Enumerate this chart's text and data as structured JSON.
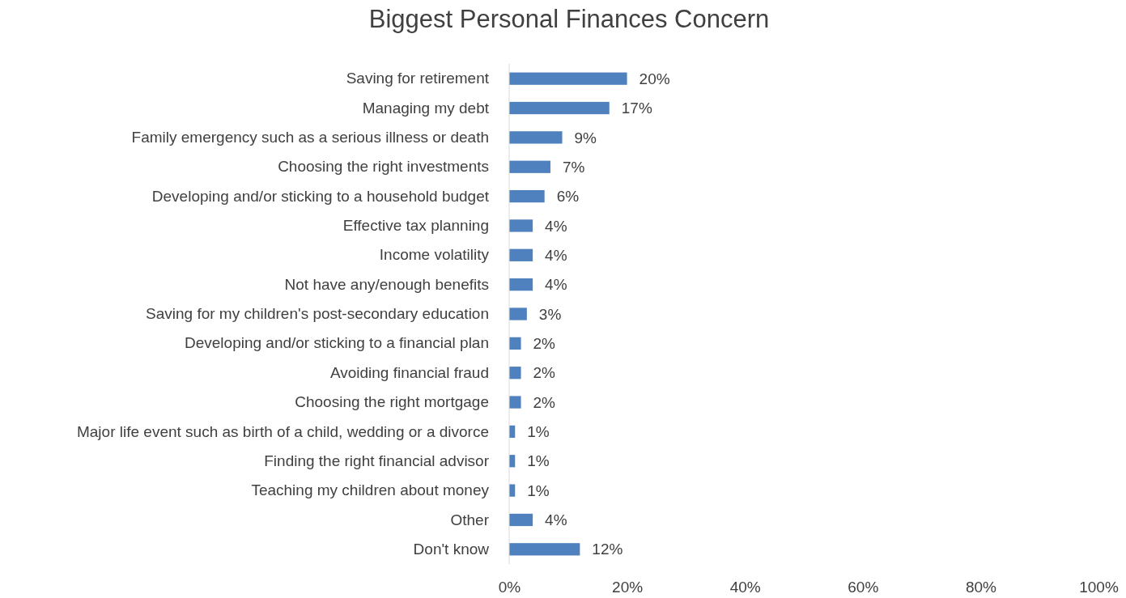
{
  "chart_data": {
    "type": "bar",
    "orientation": "horizontal",
    "title": "Biggest Personal Finances Concern",
    "categories": [
      "Saving for retirement",
      "Managing my debt",
      "Family emergency such as a serious illness or death",
      "Choosing the right investments",
      "Developing and/or sticking to a household budget",
      "Effective tax planning",
      "Income volatility",
      "Not have any/enough benefits",
      "Saving for my children's post-secondary education",
      "Developing and/or sticking to a financial plan",
      "Avoiding financial fraud",
      "Choosing the right mortgage",
      "Major life event such as birth of a child, wedding or a divorce",
      "Finding the right financial advisor",
      "Teaching my children about money",
      "Other",
      "Don't know"
    ],
    "values": [
      20,
      17,
      9,
      7,
      6,
      4,
      4,
      4,
      3,
      2,
      2,
      2,
      1,
      1,
      1,
      4,
      12
    ],
    "value_labels": [
      "20%",
      "17%",
      "9%",
      "7%",
      "6%",
      "4%",
      "4%",
      "4%",
      "3%",
      "2%",
      "2%",
      "2%",
      "1%",
      "1%",
      "1%",
      "4%",
      "12%"
    ],
    "color": "#4e81bd",
    "xlim": [
      0,
      100
    ],
    "xticks": [
      {
        "value": 0,
        "label": "0%"
      },
      {
        "value": 20,
        "label": "20%"
      },
      {
        "value": 40,
        "label": "40%"
      },
      {
        "value": 60,
        "label": "60%"
      },
      {
        "value": 80,
        "label": "80%"
      },
      {
        "value": 100,
        "label": "100%"
      }
    ],
    "grid": false
  }
}
